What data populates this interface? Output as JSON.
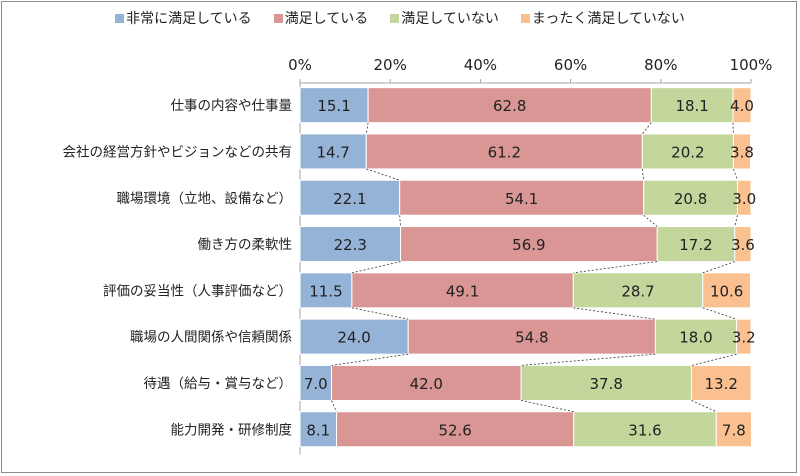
{
  "chart_data": {
    "type": "bar",
    "orientation": "horizontal",
    "stacked": "percent",
    "categories": [
      "仕事の内容や仕事量",
      "会社の経営方針やビジョンなどの共有",
      "職場環境（立地、設備など）",
      "働き方の柔軟性",
      "評価の妥当性（人事評価など）",
      "職場の人間関係や信頼関係",
      "待遇（給与・賞与など）",
      "能力開発・研修制度"
    ],
    "series": [
      {
        "name": "非常に満足している",
        "color": "#95b3d7",
        "values": [
          15.1,
          14.7,
          22.1,
          22.3,
          11.5,
          24.0,
          7.0,
          8.1
        ]
      },
      {
        "name": "満足している",
        "color": "#d99694",
        "values": [
          62.8,
          61.2,
          54.1,
          56.9,
          49.1,
          54.8,
          42.0,
          52.6
        ]
      },
      {
        "name": "満足していない",
        "color": "#c3d69b",
        "values": [
          18.1,
          20.2,
          20.8,
          17.2,
          28.7,
          18.0,
          37.8,
          31.6
        ]
      },
      {
        "name": "まったく満足していない",
        "color": "#fac090",
        "values": [
          4.0,
          3.8,
          3.0,
          3.6,
          10.6,
          3.2,
          13.2,
          7.8
        ]
      }
    ],
    "xticks": [
      "0%",
      "20%",
      "40%",
      "60%",
      "80%",
      "100%"
    ],
    "xlim": [
      0,
      100
    ],
    "legend": "top"
  }
}
